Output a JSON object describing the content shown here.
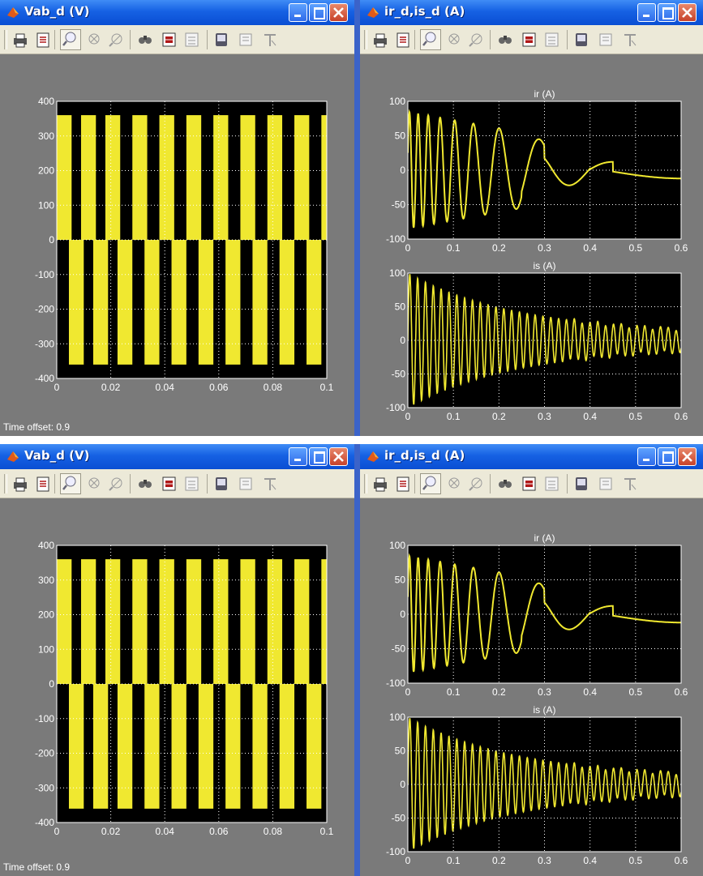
{
  "windows": {
    "top_left": {
      "title": "Vab_d (V)",
      "time_offset_label": "Time offset:",
      "time_offset_value": "0.9"
    },
    "top_right": {
      "title": "ir_d,is_d (A)"
    },
    "bottom_left": {
      "title": "Vab_d (V)",
      "time_offset_label": "Time offset:",
      "time_offset_value": "0.9"
    },
    "bottom_right": {
      "title": "ir_d,is_d (A)"
    }
  },
  "toolbar_icons": [
    "print-icon",
    "parameters-icon",
    "zoom-icon",
    "zoom-x-icon",
    "zoom-y-icon",
    "autoscale-icon",
    "save-axes-icon",
    "restore-axes-icon",
    "floating-scope-icon",
    "lock-axes-icon",
    "signal-selection-icon"
  ],
  "colors": {
    "trace": "#f0e830",
    "plot_bg": "#000000",
    "frame_bg": "#7a7a7a",
    "titlebar": "#0a4ed3"
  },
  "chart_data": [
    {
      "type": "line",
      "window": "Vab_d (V)",
      "title": "",
      "xlim": [
        0,
        0.1
      ],
      "ylim": [
        -400,
        400
      ],
      "xticks": [
        "0",
        "0.02",
        "0.04",
        "0.06",
        "0.08",
        "0.1"
      ],
      "yticks": [
        "400",
        "300",
        "200",
        "100",
        "0",
        "-100",
        "-200",
        "-300",
        "-400"
      ],
      "grid": true,
      "series": [
        {
          "kind": "pwm-square",
          "high": 360,
          "low": -360,
          "pulse_starts": [
            0,
            0.009,
            0.018,
            0.028,
            0.038,
            0.048,
            0.058,
            0.068,
            0.078,
            0.088,
            0.098
          ],
          "pulse_width": 0.0055
        }
      ]
    },
    {
      "type": "line",
      "window": "ir_d,is_d (A)",
      "title": "ir (A)",
      "xlim": [
        0,
        0.6
      ],
      "ylim": [
        -100,
        100
      ],
      "xticks": [
        "0",
        "0.1",
        "0.2",
        "0.3",
        "0.4",
        "0.5",
        "0.6"
      ],
      "yticks": [
        "100",
        "50",
        "0",
        "-50",
        "-100"
      ],
      "grid": true,
      "series": [
        {
          "kind": "chirp",
          "peaks": [
            [
              0.0,
              80
            ],
            [
              0.1,
              85
            ],
            [
              0.15,
              70
            ],
            [
              0.2,
              65
            ],
            [
              0.25,
              50
            ],
            [
              0.28,
              -40
            ],
            [
              0.33,
              22
            ],
            [
              0.5,
              -12
            ],
            [
              0.6,
              -5
            ]
          ]
        }
      ]
    },
    {
      "type": "line",
      "window": "ir_d,is_d (A)",
      "title": "is (A)",
      "xlim": [
        0,
        0.6
      ],
      "ylim": [
        -100,
        100
      ],
      "xticks": [
        "0",
        "0.1",
        "0.2",
        "0.3",
        "0.4",
        "0.5",
        "0.6"
      ],
      "yticks": [
        "100",
        "50",
        "0",
        "-50",
        "-100"
      ],
      "grid": true,
      "series": [
        {
          "kind": "decaying-oscillation",
          "amplitude_start": 90,
          "amplitude_end": 12,
          "period": 0.017
        }
      ]
    }
  ]
}
